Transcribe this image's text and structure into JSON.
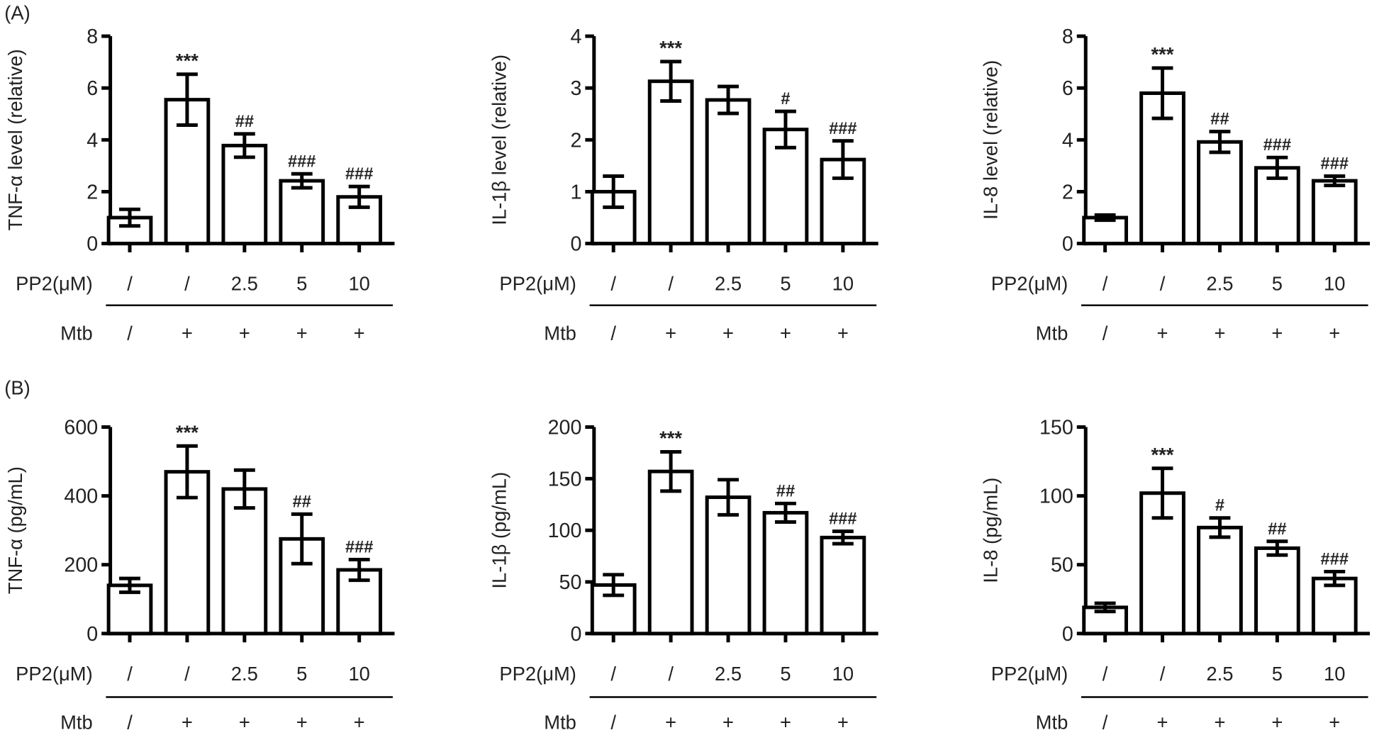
{
  "panel_labels": [
    "(A)",
    "(B)"
  ],
  "row_labels": {
    "pp2": "PP2(μM)",
    "mtb": "Mtb"
  },
  "chart_data": [
    {
      "type": "bar",
      "panel": "A",
      "ylabel": "TNF-α level (relative)",
      "ylim": [
        0,
        8
      ],
      "yticks": [
        "0",
        "2",
        "4",
        "6",
        "8"
      ],
      "tick_values": [
        0,
        2,
        4,
        6,
        8
      ],
      "categories": [
        "/",
        "/",
        "2.5",
        "5",
        "10"
      ],
      "mtb": [
        "/",
        "+",
        "+",
        "+",
        "+"
      ],
      "values": [
        1.0,
        5.55,
        3.78,
        2.42,
        1.8
      ],
      "errors": [
        0.32,
        0.98,
        0.45,
        0.27,
        0.4
      ],
      "annotations": [
        "",
        "***",
        "##",
        "###",
        "###"
      ]
    },
    {
      "type": "bar",
      "panel": "A",
      "ylabel": "IL-1β level (relative)",
      "ylim": [
        0,
        4
      ],
      "yticks": [
        "0",
        "1",
        "2",
        "3",
        "4"
      ],
      "tick_values": [
        0,
        1,
        2,
        3,
        4
      ],
      "categories": [
        "/",
        "/",
        "2.5",
        "5",
        "10"
      ],
      "mtb": [
        "/",
        "+",
        "+",
        "+",
        "+"
      ],
      "values": [
        1.0,
        3.13,
        2.77,
        2.2,
        1.62
      ],
      "errors": [
        0.3,
        0.38,
        0.26,
        0.35,
        0.36
      ],
      "annotations": [
        "",
        "***",
        "",
        "#",
        "###"
      ]
    },
    {
      "type": "bar",
      "panel": "A",
      "ylabel": "IL-8 level (relative)",
      "ylim": [
        0,
        8
      ],
      "yticks": [
        "0",
        "2",
        "4",
        "6",
        "8"
      ],
      "tick_values": [
        0,
        2,
        4,
        6,
        8
      ],
      "categories": [
        "/",
        "/",
        "2.5",
        "5",
        "10"
      ],
      "mtb": [
        "/",
        "+",
        "+",
        "+",
        "+"
      ],
      "values": [
        1.0,
        5.8,
        3.92,
        2.92,
        2.42
      ],
      "errors": [
        0.1,
        0.97,
        0.4,
        0.4,
        0.18
      ],
      "annotations": [
        "",
        "***",
        "##",
        "###",
        "###"
      ]
    },
    {
      "type": "bar",
      "panel": "B",
      "ylabel": "TNF-α (pg/mL)",
      "ylim": [
        0,
        600
      ],
      "yticks": [
        "0",
        "200",
        "400",
        "600"
      ],
      "tick_values": [
        0,
        200,
        400,
        600
      ],
      "categories": [
        "/",
        "/",
        "2.5",
        "5",
        "10"
      ],
      "mtb": [
        "/",
        "+",
        "+",
        "+",
        "+"
      ],
      "values": [
        140,
        470,
        420,
        275,
        185
      ],
      "errors": [
        20,
        75,
        55,
        72,
        30
      ],
      "annotations": [
        "",
        "***",
        "",
        "##",
        "###"
      ]
    },
    {
      "type": "bar",
      "panel": "B",
      "ylabel": "IL-1β (pg/mL)",
      "ylim": [
        0,
        200
      ],
      "yticks": [
        "0",
        "50",
        "100",
        "150",
        "200"
      ],
      "tick_values": [
        0,
        50,
        100,
        150,
        200
      ],
      "categories": [
        "/",
        "/",
        "2.5",
        "5",
        "10"
      ],
      "mtb": [
        "/",
        "+",
        "+",
        "+",
        "+"
      ],
      "values": [
        47,
        157,
        132,
        117,
        93
      ],
      "errors": [
        10,
        19,
        17,
        9,
        6
      ],
      "annotations": [
        "",
        "***",
        "",
        "##",
        "###"
      ]
    },
    {
      "type": "bar",
      "panel": "B",
      "ylabel": "IL-8 (pg/mL)",
      "ylim": [
        0,
        150
      ],
      "yticks": [
        "0",
        "50",
        "100",
        "150"
      ],
      "tick_values": [
        0,
        50,
        100,
        150
      ],
      "categories": [
        "/",
        "/",
        "2.5",
        "5",
        "10"
      ],
      "mtb": [
        "/",
        "+",
        "+",
        "+",
        "+"
      ],
      "values": [
        19,
        102,
        77,
        62,
        40
      ],
      "errors": [
        3,
        18,
        7,
        5,
        5
      ],
      "annotations": [
        "",
        "***",
        "#",
        "##",
        "###"
      ]
    }
  ]
}
